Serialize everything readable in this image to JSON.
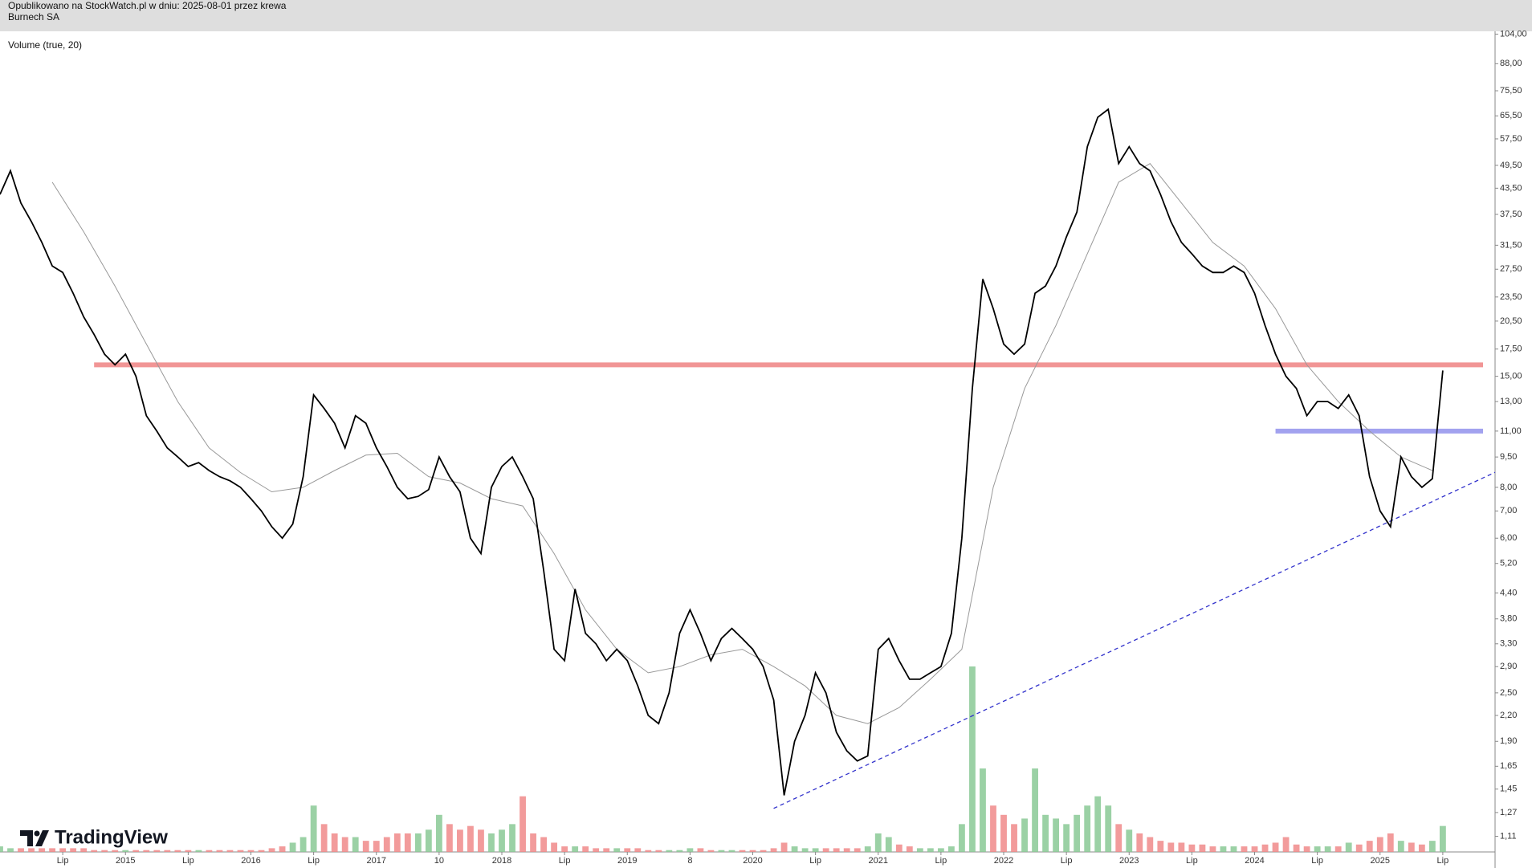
{
  "header": {
    "published": "Opublikowano na StockWatch.pl w dniu: 2025-08-01 przez krewa",
    "symbol": "Burnech SA"
  },
  "indicator_label": "Volume (true, 20)",
  "logo": "TradingView",
  "chart_data": {
    "type": "line",
    "log_scale": true,
    "x": [
      "2014-01",
      "2014-02",
      "2014-03",
      "2014-04",
      "2014-05",
      "2014-06",
      "2014-07",
      "2014-08",
      "2014-09",
      "2014-10",
      "2014-11",
      "2014-12",
      "2015-01",
      "2015-02",
      "2015-03",
      "2015-04",
      "2015-05",
      "2015-06",
      "2015-07",
      "2015-08",
      "2015-09",
      "2015-10",
      "2015-11",
      "2015-12",
      "2016-01",
      "2016-02",
      "2016-03",
      "2016-04",
      "2016-05",
      "2016-06",
      "2016-07",
      "2016-08",
      "2016-09",
      "2016-10",
      "2016-11",
      "2016-12",
      "2017-01",
      "2017-02",
      "2017-03",
      "2017-04",
      "2017-05",
      "2017-06",
      "2017-07",
      "2017-08",
      "2017-09",
      "2017-10",
      "2017-11",
      "2017-12",
      "2018-01",
      "2018-02",
      "2018-03",
      "2018-04",
      "2018-05",
      "2018-06",
      "2018-07",
      "2018-08",
      "2018-09",
      "2018-10",
      "2018-11",
      "2018-12",
      "2019-01",
      "2019-02",
      "2019-03",
      "2019-04",
      "2019-05",
      "2019-06",
      "2019-07",
      "2019-08",
      "2019-09",
      "2019-10",
      "2019-11",
      "2019-12",
      "2020-01",
      "2020-02",
      "2020-03",
      "2020-04",
      "2020-05",
      "2020-06",
      "2020-07",
      "2020-08",
      "2020-09",
      "2020-10",
      "2020-11",
      "2020-12",
      "2021-01",
      "2021-02",
      "2021-03",
      "2021-04",
      "2021-05",
      "2021-06",
      "2021-07",
      "2021-08",
      "2021-09",
      "2021-10",
      "2021-11",
      "2021-12",
      "2022-01",
      "2022-02",
      "2022-03",
      "2022-04",
      "2022-05",
      "2022-06",
      "2022-07",
      "2022-08",
      "2022-09",
      "2022-10",
      "2022-11",
      "2022-12",
      "2023-01",
      "2023-02",
      "2023-03",
      "2023-04",
      "2023-05",
      "2023-06",
      "2023-07",
      "2023-08",
      "2023-09",
      "2023-10",
      "2023-11",
      "2023-12",
      "2024-01",
      "2024-02",
      "2024-03",
      "2024-04",
      "2024-05",
      "2024-06",
      "2024-07",
      "2024-08",
      "2024-09",
      "2024-10",
      "2024-11",
      "2024-12",
      "2025-01",
      "2025-02",
      "2025-03",
      "2025-04",
      "2025-05",
      "2025-06",
      "2025-07"
    ],
    "series": [
      {
        "color": "#000000",
        "values": [
          42,
          48,
          40,
          36,
          32,
          28,
          27,
          24,
          21,
          19,
          17,
          16,
          17,
          15,
          12,
          11,
          10,
          9.5,
          9.0,
          9.2,
          8.8,
          8.5,
          8.3,
          8.0,
          7.5,
          7.0,
          6.4,
          6.0,
          6.5,
          8.5,
          13.5,
          12.5,
          11.5,
          10.0,
          12.0,
          11.5,
          10,
          9.0,
          8.0,
          7.5,
          7.6,
          7.9,
          9.5,
          8.5,
          7.8,
          6.0,
          5.5,
          8.0,
          9.0,
          9.5,
          8.5,
          7.5,
          5.0,
          3.2,
          3.0,
          4.5,
          3.5,
          3.3,
          3.0,
          3.2,
          3.0,
          2.6,
          2.2,
          2.1,
          2.5,
          3.5,
          4.0,
          3.5,
          3.0,
          3.4,
          3.6,
          3.4,
          3.2,
          2.9,
          2.4,
          1.4,
          1.9,
          2.2,
          2.8,
          2.5,
          2.0,
          1.8,
          1.7,
          1.75,
          3.2,
          3.4,
          3.0,
          2.7,
          2.7,
          2.8,
          2.9,
          3.5,
          6.0,
          14,
          26,
          22,
          18,
          17,
          18,
          24,
          25,
          28,
          33,
          38,
          55,
          65,
          68,
          50,
          55,
          50,
          48,
          42,
          36,
          32,
          30,
          28,
          27,
          27,
          28,
          27,
          24,
          20,
          17,
          15,
          14,
          12,
          13,
          13,
          12.5,
          13.5,
          12,
          8.5,
          7.0,
          6.4,
          9.5,
          8.5,
          8.0,
          8.4,
          15.5
        ]
      },
      {
        "axis": "y2",
        "up_color": "#89c995",
        "down_color": "#f08a8a",
        "values": [
          3,
          2,
          2,
          2,
          2,
          2,
          2,
          2,
          2,
          1,
          1,
          1,
          1,
          1,
          1,
          1,
          1,
          1,
          1,
          1,
          1,
          1,
          1,
          1,
          1,
          1,
          2,
          3,
          5,
          8,
          25,
          15,
          10,
          8,
          8,
          6,
          6,
          8,
          10,
          10,
          10,
          12,
          20,
          15,
          12,
          14,
          12,
          10,
          12,
          15,
          30,
          10,
          8,
          5,
          3,
          3,
          3,
          2,
          2,
          2,
          2,
          2,
          1,
          1,
          1,
          1,
          2,
          2,
          1,
          1,
          1,
          1,
          1,
          1,
          2,
          5,
          3,
          2,
          2,
          2,
          2,
          2,
          2,
          3,
          10,
          8,
          4,
          3,
          2,
          2,
          2,
          3,
          15,
          100,
          45,
          25,
          20,
          15,
          18,
          45,
          20,
          18,
          15,
          20,
          25,
          30,
          25,
          15,
          12,
          10,
          8,
          6,
          5,
          5,
          4,
          4,
          3,
          3,
          3,
          3,
          3,
          4,
          5,
          8,
          4,
          3,
          3,
          3,
          3,
          5,
          4,
          6,
          8,
          10,
          6,
          5,
          4,
          6,
          14
        ]
      },
      {
        "color": "#999999",
        "x": [
          "2014-06",
          "2014-09",
          "2014-12",
          "2015-03",
          "2015-06",
          "2015-09",
          "2015-12",
          "2016-03",
          "2016-06",
          "2016-09",
          "2016-12",
          "2017-03",
          "2017-06",
          "2017-09",
          "2017-12",
          "2018-03",
          "2018-06",
          "2018-09",
          "2018-12",
          "2019-03",
          "2019-06",
          "2019-09",
          "2019-12",
          "2020-03",
          "2020-06",
          "2020-09",
          "2020-12",
          "2021-03",
          "2021-06",
          "2021-09",
          "2021-12",
          "2022-03",
          "2022-06",
          "2022-09",
          "2022-12",
          "2023-03",
          "2023-06",
          "2023-09",
          "2023-12",
          "2024-03",
          "2024-06",
          "2024-09",
          "2024-12",
          "2025-03",
          "2025-06"
        ],
        "values": [
          45,
          34,
          25,
          18,
          13,
          10,
          8.7,
          7.8,
          8.0,
          8.8,
          9.6,
          9.7,
          8.5,
          8.2,
          7.5,
          7.2,
          5.5,
          4.0,
          3.2,
          2.8,
          2.9,
          3.1,
          3.2,
          2.9,
          2.6,
          2.2,
          2.1,
          2.3,
          2.7,
          3.2,
          8.0,
          14,
          20,
          30,
          45,
          50,
          40,
          32,
          28,
          22,
          16,
          13,
          11,
          9.5,
          8.8
        ]
      }
    ],
    "hlines": [
      {
        "value": 16.0,
        "from": "2014-10",
        "color": "#f08a8a"
      },
      {
        "value": 11.0,
        "from": "2024-03",
        "color": "#9999ee"
      }
    ],
    "trendline": {
      "x": [
        "2020-03",
        "2025-12"
      ],
      "values": [
        1.3,
        8.71
      ],
      "color": "#3333cc"
    },
    "xlim": [
      "2014-01",
      "2025-12"
    ],
    "ylim": [
      1.016,
      105.7
    ],
    "y2lim": [
      0,
      100
    ],
    "yticks": [
      {
        "value": 104,
        "label": "104,00"
      },
      {
        "value": 88,
        "label": "88,00"
      },
      {
        "value": 75.5,
        "label": "75,50"
      },
      {
        "value": 65.5,
        "label": "65,50"
      },
      {
        "value": 57.5,
        "label": "57,50"
      },
      {
        "value": 49.5,
        "label": "49,50"
      },
      {
        "value": 43.5,
        "label": "43,50"
      },
      {
        "value": 37.5,
        "label": "37,50"
      },
      {
        "value": 31.5,
        "label": "31,50"
      },
      {
        "value": 27.5,
        "label": "27,50"
      },
      {
        "value": 23.5,
        "label": "23,50"
      },
      {
        "value": 20.5,
        "label": "20,50"
      },
      {
        "value": 17.5,
        "label": "17,50"
      },
      {
        "value": 15,
        "label": "15,00"
      },
      {
        "value": 13,
        "label": "13,00"
      },
      {
        "value": 11,
        "label": "11,00"
      },
      {
        "value": 9.5,
        "label": "9,50"
      },
      {
        "value": 8,
        "label": "8,00"
      },
      {
        "value": 7,
        "label": "7,00"
      },
      {
        "value": 6,
        "label": "6,00"
      },
      {
        "value": 5.2,
        "label": "5,20"
      },
      {
        "value": 4.4,
        "label": "4,40"
      },
      {
        "value": 3.8,
        "label": "3,80"
      },
      {
        "value": 3.3,
        "label": "3,30"
      },
      {
        "value": 2.9,
        "label": "2,90"
      },
      {
        "value": 2.5,
        "label": "2,50"
      },
      {
        "value": 2.2,
        "label": "2,20"
      },
      {
        "value": 1.9,
        "label": "1,90"
      },
      {
        "value": 1.65,
        "label": "1,65"
      },
      {
        "value": 1.45,
        "label": "1,45"
      },
      {
        "value": 1.27,
        "label": "1,27"
      },
      {
        "value": 1.11,
        "label": "1,11"
      }
    ],
    "xticks": [
      {
        "value": "2014-07",
        "label": "Lip"
      },
      {
        "value": "2015-01",
        "label": "2015"
      },
      {
        "value": "2015-07",
        "label": "Lip"
      },
      {
        "value": "2016-01",
        "label": "2016"
      },
      {
        "value": "2016-07",
        "label": "Lip"
      },
      {
        "value": "2017-01",
        "label": "2017"
      },
      {
        "value": "2017-07",
        "label": "10"
      },
      {
        "value": "2018-01",
        "label": "2018"
      },
      {
        "value": "2018-07",
        "label": "Lip"
      },
      {
        "value": "2019-01",
        "label": "2019"
      },
      {
        "value": "2019-07",
        "label": "8"
      },
      {
        "value": "2020-01",
        "label": "2020"
      },
      {
        "value": "2020-07",
        "label": "Lip"
      },
      {
        "value": "2021-01",
        "label": "2021"
      },
      {
        "value": "2021-07",
        "label": "Lip"
      },
      {
        "value": "2022-01",
        "label": "2022"
      },
      {
        "value": "2022-07",
        "label": "Lip"
      },
      {
        "value": "2023-01",
        "label": "2023"
      },
      {
        "value": "2023-07",
        "label": "Lip"
      },
      {
        "value": "2024-01",
        "label": "2024"
      },
      {
        "value": "2024-07",
        "label": "Lip"
      },
      {
        "value": "2025-01",
        "label": "2025"
      },
      {
        "value": "2025-07",
        "label": "Lip"
      }
    ]
  }
}
